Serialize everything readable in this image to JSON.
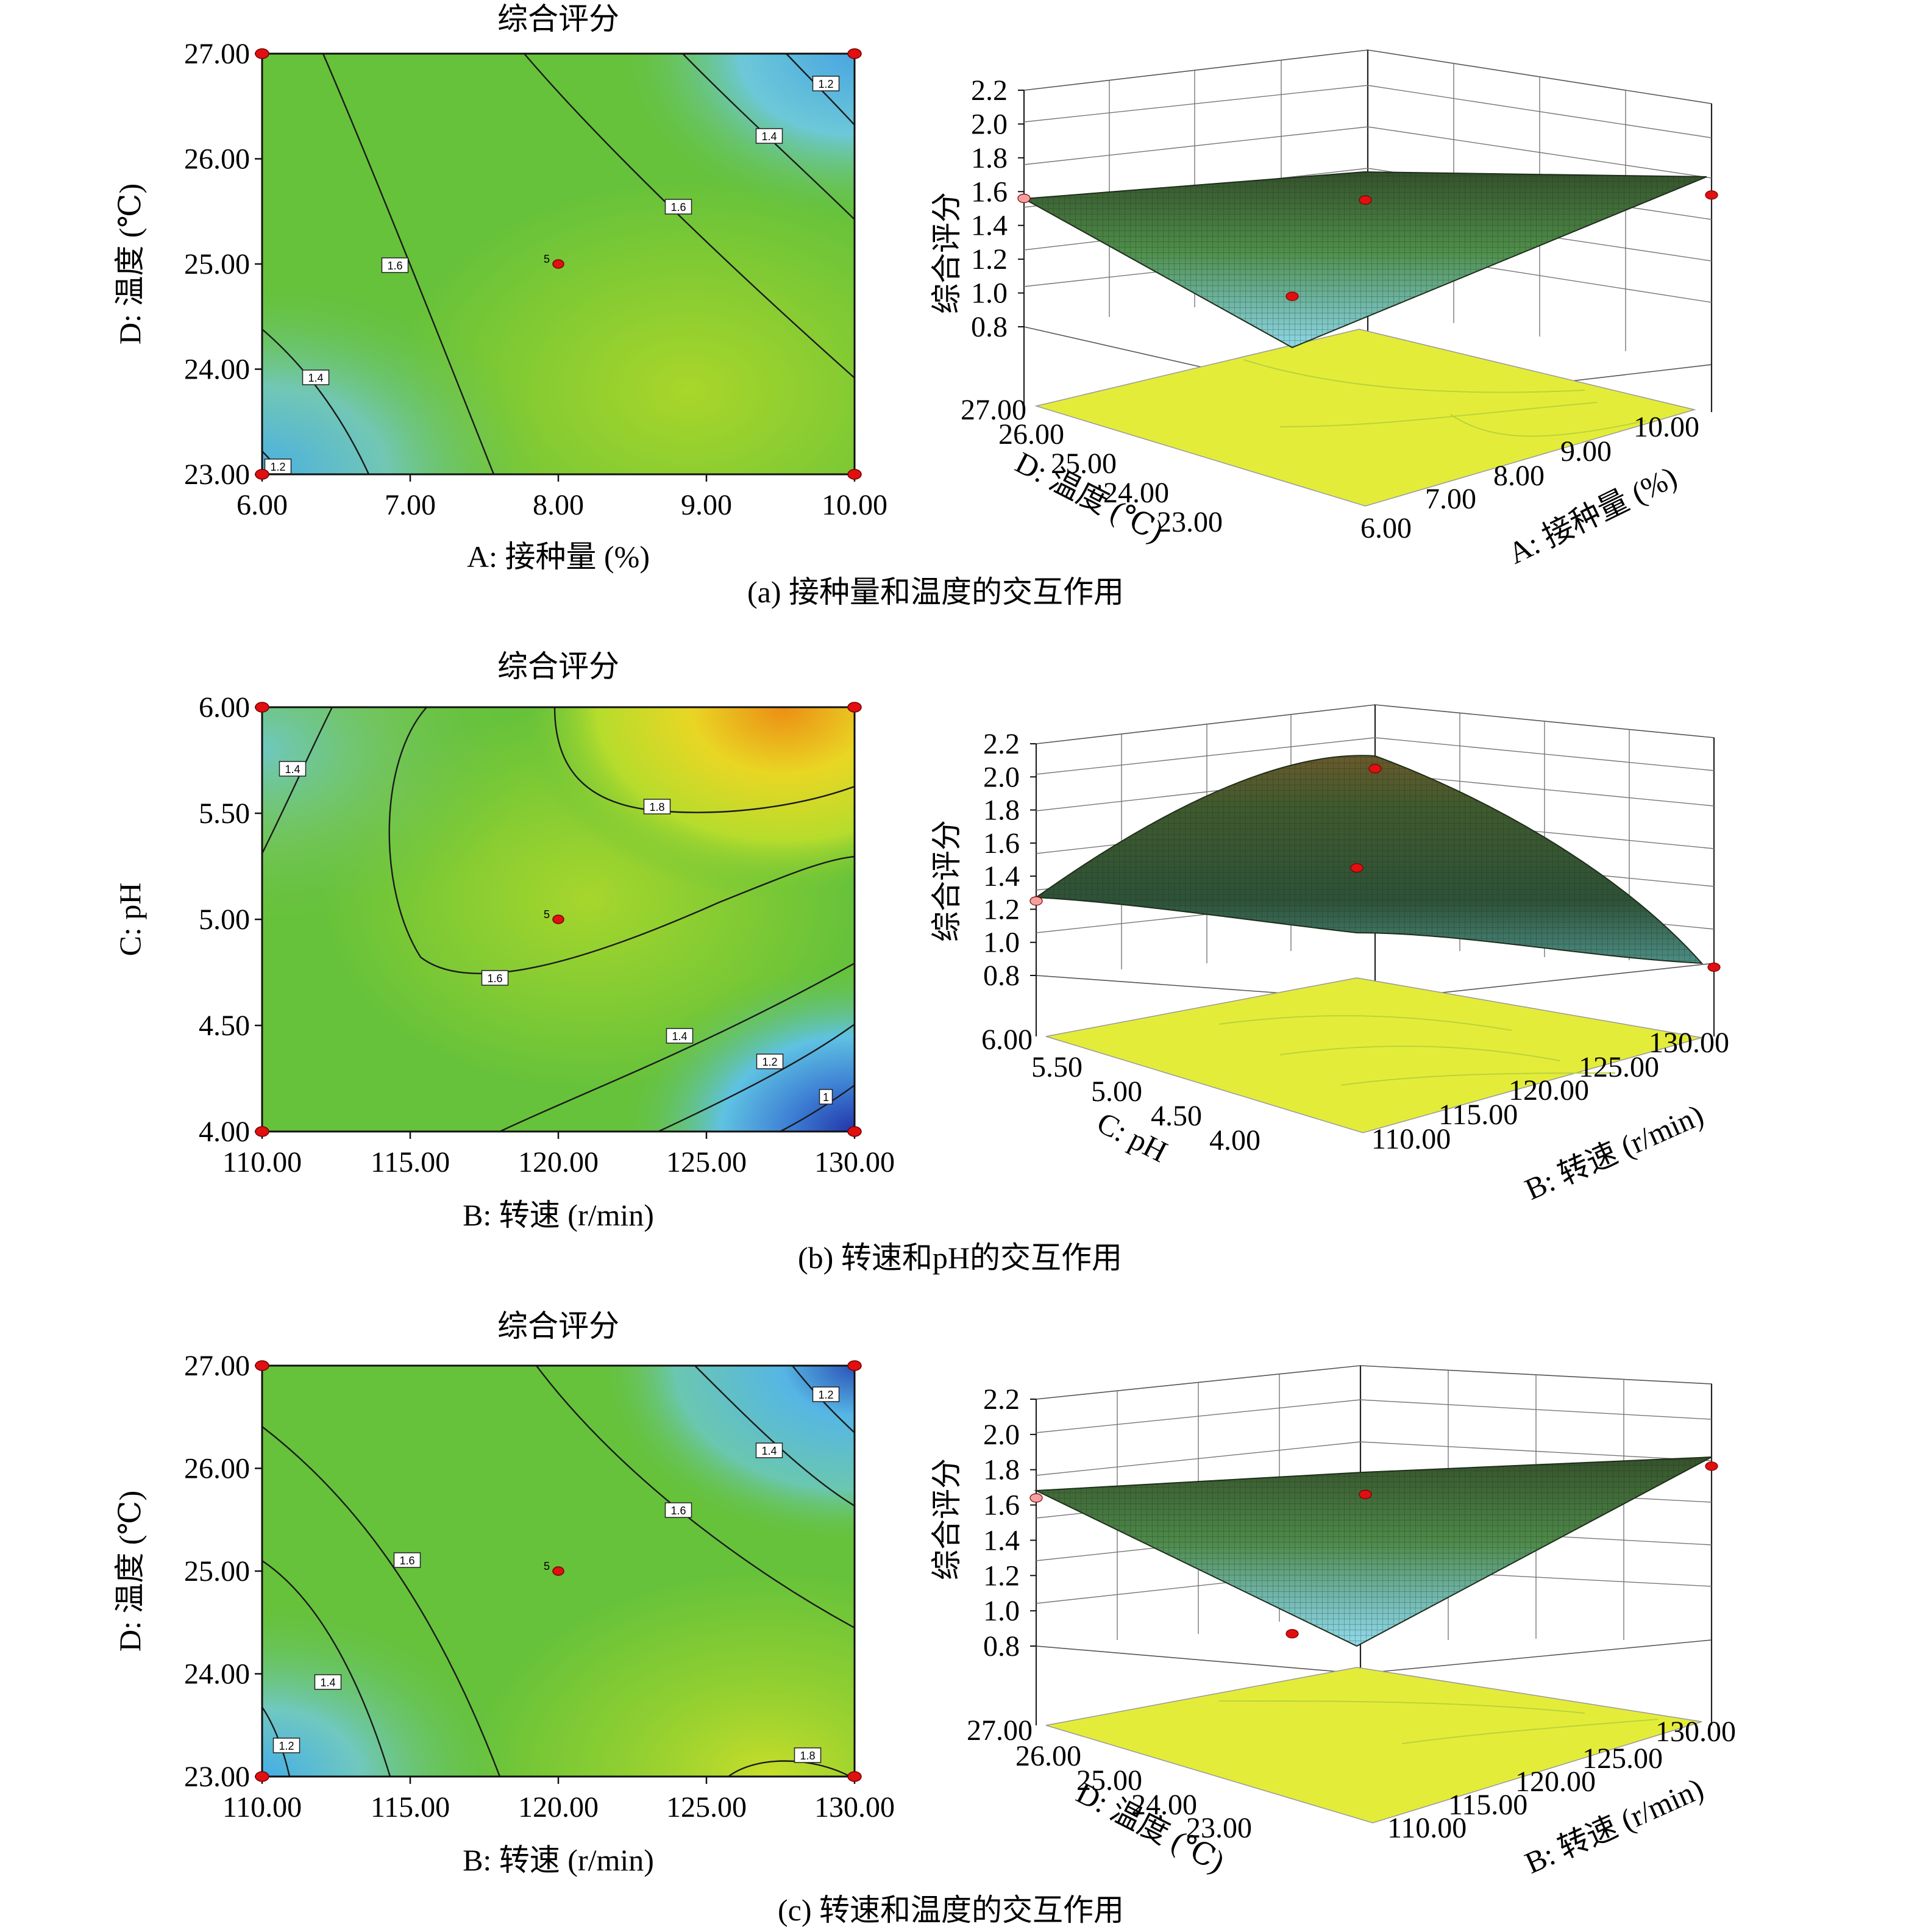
{
  "colors": {
    "blue": "#2a4fb0",
    "cyan": "#5ec8e6",
    "green": "#67c12d",
    "lime": "#a8d928",
    "yellow": "#e2e62a",
    "orange": "#e29a18",
    "floor": "#e4ec3a",
    "marker": "#e01010"
  },
  "chart_data": [
    {
      "panel": "a",
      "type": "contour",
      "title": "综合评分",
      "caption": "(a) 接种量和温度的交互作用",
      "xlabel": "A: 接种量 (%)",
      "ylabel": "D: 温度 (℃)",
      "xlim": [
        6,
        10
      ],
      "ylim": [
        23,
        27
      ],
      "xticks": [
        "6.00",
        "7.00",
        "8.00",
        "9.00",
        "10.00"
      ],
      "yticks": [
        "23.00",
        "24.00",
        "25.00",
        "26.00",
        "27.00"
      ],
      "contour_labels": [
        "1.2",
        "1.4",
        "1.6",
        "1.6",
        "1.4",
        "1.2"
      ],
      "contour_levels": [
        1.2,
        1.4,
        1.6
      ],
      "center_label": "5",
      "center_point": [
        8,
        25
      ],
      "corner_points": [
        [
          6,
          23
        ],
        [
          6,
          27
        ],
        [
          10,
          23
        ],
        [
          10,
          27
        ]
      ],
      "surface": {
        "zlabel": "综合评分",
        "zticks": [
          "0.8",
          "1.0",
          "1.2",
          "1.4",
          "1.6",
          "1.8",
          "2.0",
          "2.2"
        ],
        "zlim": [
          0.8,
          2.2
        ],
        "xlabel": "A: 接种量 (%)",
        "ylabel": "D: 温度 (℃)",
        "xticks": [
          "6.00",
          "7.00",
          "8.00",
          "9.00",
          "10.00"
        ],
        "yticks": [
          "23.00",
          "24.00",
          "25.00",
          "26.00",
          "27.00"
        ],
        "corner_z": [
          1.56,
          0.98,
          1.55,
          1.58
        ]
      }
    },
    {
      "panel": "b",
      "type": "contour",
      "title": "综合评分",
      "caption": "(b) 转速和pH的交互作用",
      "xlabel": "B: 转速 (r/min)",
      "ylabel": "C: pH",
      "xlim": [
        110,
        130
      ],
      "ylim": [
        4,
        6
      ],
      "xticks": [
        "110.00",
        "115.00",
        "120.00",
        "125.00",
        "130.00"
      ],
      "yticks": [
        "4.00",
        "4.50",
        "5.00",
        "5.50",
        "6.00"
      ],
      "contour_labels": [
        "1.4",
        "1.8",
        "1.6",
        "1.4",
        "1.2",
        "1"
      ],
      "contour_levels": [
        1.0,
        1.2,
        1.4,
        1.6,
        1.8
      ],
      "center_label": "5",
      "center_point": [
        120,
        5
      ],
      "corner_points": [
        [
          110,
          4
        ],
        [
          110,
          6
        ],
        [
          130,
          4
        ],
        [
          130,
          6
        ]
      ],
      "surface": {
        "zlabel": "综合评分",
        "zticks": [
          "0.8",
          "1.0",
          "1.2",
          "1.4",
          "1.6",
          "1.8",
          "2.0",
          "2.2"
        ],
        "zlim": [
          0.8,
          2.2
        ],
        "xlabel": "B: 转速 (r/min)",
        "ylabel": "C: pH",
        "xticks": [
          "110.00",
          "115.00",
          "120.00",
          "125.00",
          "130.00"
        ],
        "yticks": [
          "4.00",
          "4.50",
          "5.00",
          "5.50",
          "6.00"
        ],
        "corner_z": [
          1.25,
          1.45,
          2.05,
          0.85
        ]
      }
    },
    {
      "panel": "c",
      "type": "contour",
      "title": "综合评分",
      "caption": "(c) 转速和温度的交互作用",
      "xlabel": "B: 转速 (r/min)",
      "ylabel": "D: 温度 (℃)",
      "xlim": [
        110,
        130
      ],
      "ylim": [
        23,
        27
      ],
      "xticks": [
        "110.00",
        "115.00",
        "120.00",
        "125.00",
        "130.00"
      ],
      "yticks": [
        "23.00",
        "24.00",
        "25.00",
        "26.00",
        "27.00"
      ],
      "contour_labels": [
        "1.2",
        "1.4",
        "1.6",
        "1.6",
        "1.4",
        "1.2",
        "1.8"
      ],
      "contour_levels": [
        1.2,
        1.4,
        1.6,
        1.8
      ],
      "center_label": "5",
      "center_point": [
        120,
        25
      ],
      "corner_points": [
        [
          110,
          23
        ],
        [
          110,
          27
        ],
        [
          130,
          23
        ],
        [
          130,
          27
        ]
      ],
      "surface": {
        "zlabel": "综合评分",
        "zticks": [
          "0.8",
          "1.0",
          "1.2",
          "1.4",
          "1.6",
          "1.8",
          "2.0",
          "2.2"
        ],
        "zlim": [
          0.8,
          2.2
        ],
        "xlabel": "B: 转速 (r/min)",
        "ylabel": "D: 温度 (℃)",
        "xticks": [
          "110.00",
          "115.00",
          "120.00",
          "125.00",
          "130.00"
        ],
        "yticks": [
          "23.00",
          "24.00",
          "25.00",
          "26.00",
          "27.00"
        ],
        "corner_z": [
          1.64,
          0.87,
          1.66,
          1.82
        ]
      }
    }
  ]
}
